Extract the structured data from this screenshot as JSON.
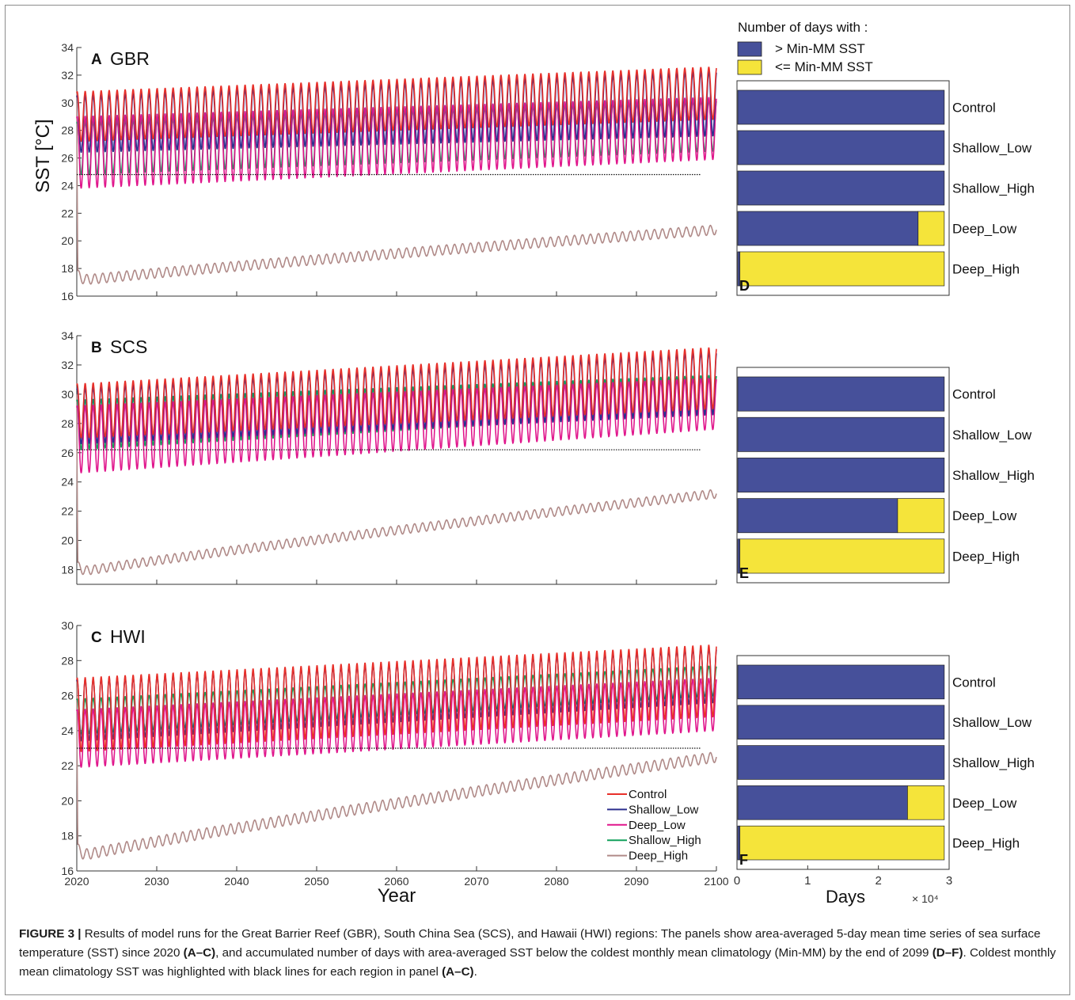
{
  "colors": {
    "control": "#e8302a",
    "shallow_low": "#2c2f8e",
    "deep_low": "#e0168c",
    "shallow_high": "#12a05c",
    "deep_high": "#b08a88",
    "above": "#46509a",
    "below": "#f5e43a"
  },
  "chart_data": [
    {
      "panel": "A",
      "region": "GBR",
      "type": "line",
      "ylabel": "SST [°C]",
      "xlabel": "",
      "xlim": [
        2020,
        2100
      ],
      "ylim": [
        16,
        34
      ],
      "yticks": [
        16,
        18,
        20,
        22,
        24,
        26,
        28,
        30,
        32,
        34
      ],
      "xticks": [
        2020,
        2030,
        2040,
        2050,
        2060,
        2070,
        2080,
        2090,
        2100
      ],
      "minmm": 24.8,
      "series": [
        {
          "key": "control",
          "start": [
            27.2,
            30.8
          ],
          "end": [
            28.8,
            32.6
          ]
        },
        {
          "key": "shallow_low",
          "start": [
            26.4,
            30.5
          ],
          "end": [
            27.6,
            32.3
          ]
        },
        {
          "key": "deep_low",
          "start": [
            23.8,
            29.0
          ],
          "end": [
            25.9,
            30.4
          ]
        },
        {
          "key": "shallow_high",
          "start": [
            24.8,
            28.6
          ],
          "end": [
            26.5,
            30.2
          ]
        },
        {
          "key": "deep_high",
          "base": [
            17.1,
            20.8
          ],
          "amp": 0.35,
          "drop_from": 30.8
        }
      ]
    },
    {
      "panel": "B",
      "region": "SCS",
      "type": "line",
      "ylabel": "",
      "xlabel": "",
      "xlim": [
        2020,
        2100
      ],
      "ylim": [
        17,
        34
      ],
      "yticks": [
        18,
        20,
        22,
        24,
        26,
        28,
        30,
        32,
        34
      ],
      "xticks": [
        2020,
        2030,
        2040,
        2050,
        2060,
        2070,
        2080,
        2090,
        2100
      ],
      "minmm": 26.2,
      "series": [
        {
          "key": "control",
          "start": [
            27.0,
            30.7
          ],
          "end": [
            29.0,
            33.2
          ]
        },
        {
          "key": "shallow_low",
          "start": [
            26.6,
            30.4
          ],
          "end": [
            28.6,
            32.9
          ]
        },
        {
          "key": "deep_low",
          "start": [
            24.6,
            29.2
          ],
          "end": [
            27.6,
            31.1
          ]
        },
        {
          "key": "shallow_high",
          "start": [
            26.2,
            29.6
          ],
          "end": [
            28.8,
            31.3
          ]
        },
        {
          "key": "deep_high",
          "base": [
            17.8,
            23.2
          ],
          "amp": 0.3,
          "drop_from": 30.0
        }
      ]
    },
    {
      "panel": "C",
      "region": "HWI",
      "type": "line",
      "ylabel": "",
      "xlabel": "Year",
      "xlim": [
        2020,
        2100
      ],
      "ylim": [
        16,
        30
      ],
      "yticks": [
        16,
        18,
        20,
        22,
        24,
        26,
        28,
        30
      ],
      "xticks": [
        2020,
        2030,
        2040,
        2050,
        2060,
        2070,
        2080,
        2090,
        2100
      ],
      "minmm": 23.0,
      "series": [
        {
          "key": "control",
          "start": [
            22.8,
            27.0
          ],
          "end": [
            24.8,
            28.9
          ]
        },
        {
          "key": "shallow_low",
          "start": [
            23.4,
            26.9
          ],
          "end": [
            25.6,
            28.7
          ]
        },
        {
          "key": "deep_low",
          "start": [
            21.9,
            25.2
          ],
          "end": [
            24.0,
            27.0
          ]
        },
        {
          "key": "shallow_high",
          "start": [
            23.8,
            25.8
          ],
          "end": [
            26.0,
            27.7
          ]
        },
        {
          "key": "deep_high",
          "base": [
            16.8,
            22.5
          ],
          "amp": 0.3,
          "drop_from": 26.9
        }
      ]
    },
    {
      "panel": "D",
      "type": "bar",
      "xlim": [
        0,
        30000
      ],
      "categories": [
        "Control",
        "Shallow_Low",
        "Shallow_High",
        "Deep_Low",
        "Deep_High"
      ],
      "above": [
        29200,
        29200,
        29200,
        25500,
        300
      ],
      "below": [
        0,
        0,
        0,
        3700,
        28900
      ]
    },
    {
      "panel": "E",
      "type": "bar",
      "xlim": [
        0,
        30000
      ],
      "categories": [
        "Control",
        "Shallow_Low",
        "Shallow_High",
        "Deep_Low",
        "Deep_High"
      ],
      "above": [
        29200,
        29200,
        29200,
        22600,
        300
      ],
      "below": [
        0,
        0,
        0,
        6600,
        28900
      ]
    },
    {
      "panel": "F",
      "type": "bar",
      "xlim": [
        0,
        30000
      ],
      "xlabel": "Days",
      "xmult": "× 10⁴",
      "xticks": [
        0,
        1,
        2,
        3
      ],
      "categories": [
        "Control",
        "Shallow_Low",
        "Shallow_High",
        "Deep_Low",
        "Deep_High"
      ],
      "above": [
        29200,
        29200,
        29200,
        24000,
        300
      ],
      "below": [
        0,
        0,
        0,
        5200,
        28900
      ]
    }
  ],
  "legend": {
    "items": [
      "Control",
      "Shallow_Low",
      "Deep_Low",
      "Shallow_High",
      "Deep_High"
    ],
    "keys": [
      "control",
      "shallow_low",
      "deep_low",
      "shallow_high",
      "deep_high"
    ]
  },
  "bar_legend": {
    "title": "Number of days with :",
    "above_label": "> Min-MM SST",
    "below_label": "<= Min-MM SST"
  },
  "caption": {
    "lead": "FIGURE 3 |",
    "t1": " Results of model runs for the Great Barrier Reef (GBR), South China Sea (SCS), and Hawaii (HWI) regions: The panels show area-averaged 5-day mean time series of sea surface temperature (SST) since 2020 ",
    "b1": "(A–C)",
    "t2": ", and accumulated number of days with area-averaged SST below the coldest monthly mean climatology (Min-MM) by the end of 2099 ",
    "b2": "(D–F)",
    "t3": ". Coldest monthly mean climatology SST was highlighted with black lines for each region in panel ",
    "b3": "(A–C)",
    "t4": "."
  }
}
